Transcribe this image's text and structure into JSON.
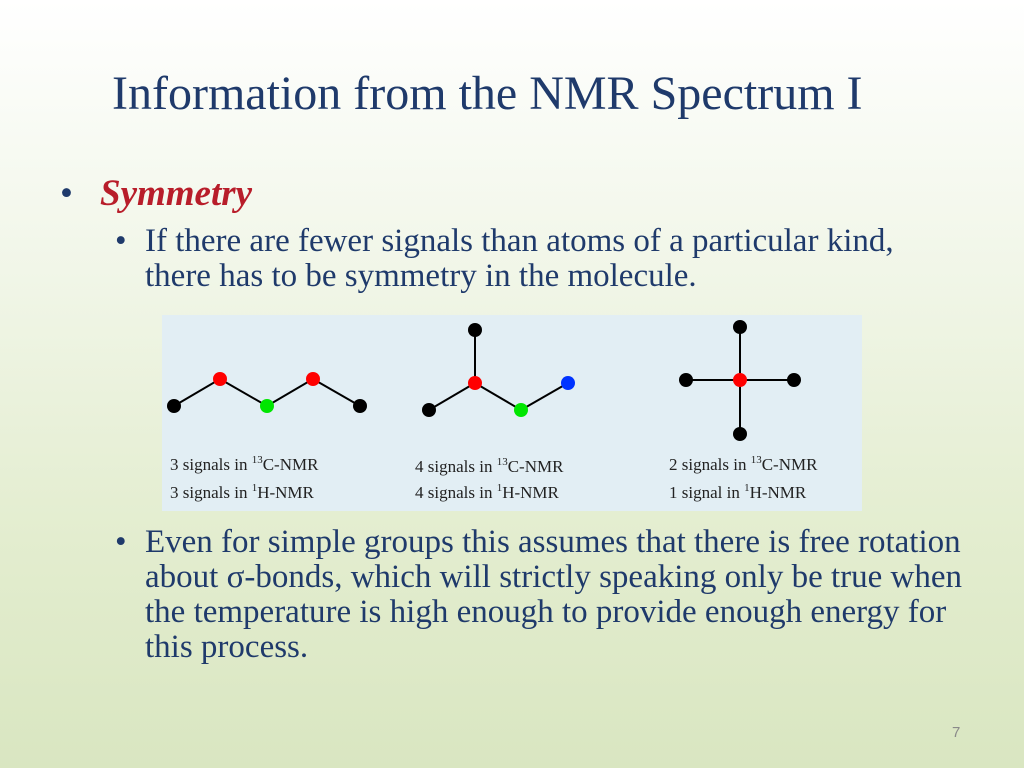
{
  "title": "Information from the NMR Spectrum I",
  "bullet_symbol": "•",
  "symmetry": {
    "label": "Symmetry",
    "text": "If there are fewer signals than atoms of a particular kind, there has to be symmetry in the molecule."
  },
  "molecules": [
    {
      "c13": {
        "prefix": "3 signals in ",
        "sup": "13",
        "suffix": "C-NMR"
      },
      "h1": {
        "prefix": "3 signals in ",
        "sup": "1",
        "suffix": "H-NMR"
      }
    },
    {
      "c13": {
        "prefix": "4 signals in ",
        "sup": "13",
        "suffix": "C-NMR"
      },
      "h1": {
        "prefix": "4 signals in ",
        "sup": "1",
        "suffix": "H-NMR"
      }
    },
    {
      "c13": {
        "prefix": "2 signals in ",
        "sup": "13",
        "suffix": "C-NMR"
      },
      "h1": {
        "prefix": "1 signal in ",
        "sup": "1",
        "suffix": "H-NMR"
      }
    }
  ],
  "atom_colors": {
    "black": "#000000",
    "red": "#ff0000",
    "green": "#00e600",
    "blue": "#0033ff"
  },
  "free_rotation": {
    "text_before": "Even for simple groups this assumes that there is free rotation about ",
    "sigma": "σ",
    "text_after": "-bonds, which will strictly speaking only be true when the temperature is high enough to provide enough energy for this process."
  },
  "page_number": "7"
}
